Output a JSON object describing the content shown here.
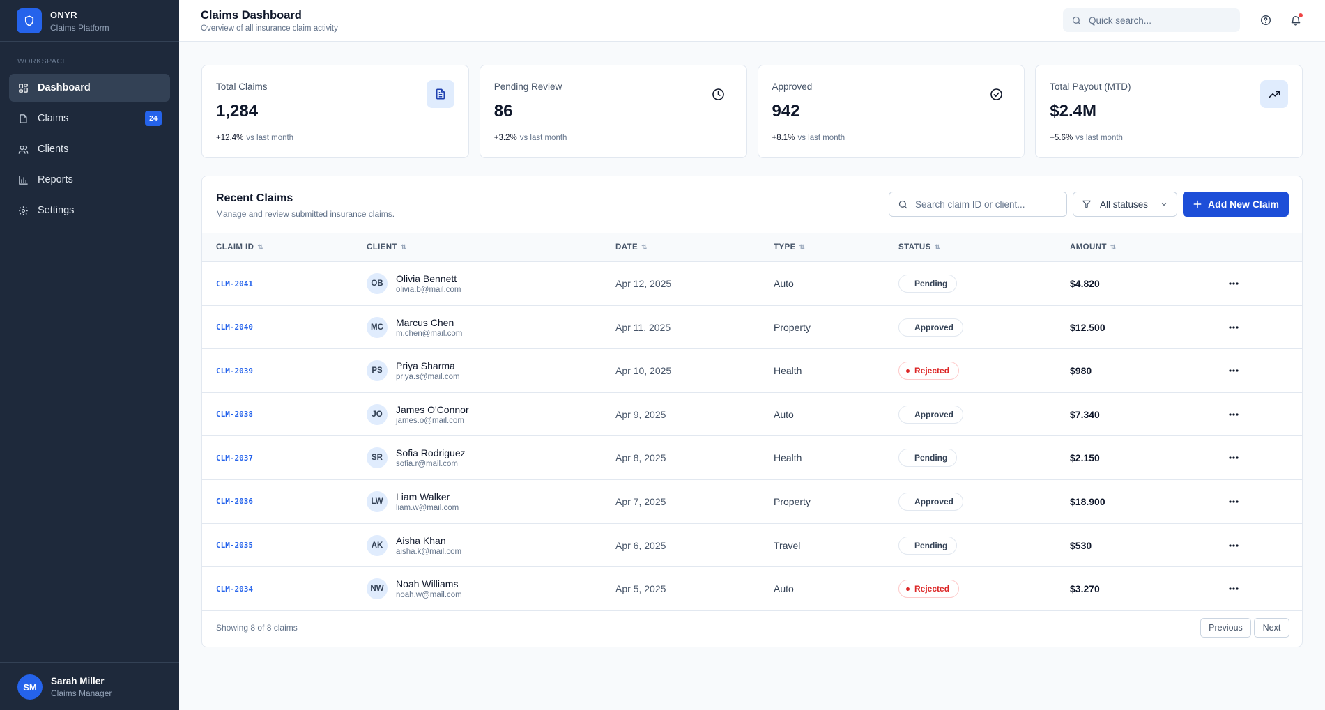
{
  "brand": {
    "name": "ONYR",
    "subtitle": "Claims Platform"
  },
  "sidebar": {
    "section_label": "WORKSPACE",
    "items": [
      {
        "label": "Dashboard",
        "icon": "grid-icon",
        "active": true
      },
      {
        "label": "Claims",
        "icon": "document-icon",
        "badge": "24"
      },
      {
        "label": "Clients",
        "icon": "users-icon"
      },
      {
        "label": "Reports",
        "icon": "bar-chart-icon"
      },
      {
        "label": "Settings",
        "icon": "gear-icon"
      }
    ]
  },
  "user": {
    "initials": "SM",
    "name": "Sarah Miller",
    "role": "Claims Manager"
  },
  "header": {
    "title": "Claims Dashboard",
    "subtitle": "Overview of all insurance claim activity",
    "search_placeholder": "Quick search..."
  },
  "stats": [
    {
      "label": "Total Claims",
      "value": "1,284",
      "change": "+12.4%",
      "change_note": "vs last month",
      "icon": "file-text-icon"
    },
    {
      "label": "Pending Review",
      "value": "86",
      "change": "+3.2%",
      "change_note": "vs last month",
      "icon": "clock-icon"
    },
    {
      "label": "Approved",
      "value": "942",
      "change": "+8.1%",
      "change_note": "vs last month",
      "icon": "check-circle-icon"
    },
    {
      "label": "Total Payout (MTD)",
      "value": "$2.4M",
      "change": "+5.6%",
      "change_note": "vs last month",
      "icon": "trending-up-icon"
    }
  ],
  "recent": {
    "title": "Recent Claims",
    "subtitle": "Manage and review submitted insurance claims.",
    "search_placeholder": "Search claim ID or client...",
    "filter_label": "All statuses",
    "add_label": "Add New Claim",
    "columns": [
      "CLAIM ID",
      "CLIENT",
      "DATE",
      "TYPE",
      "STATUS",
      "AMOUNT"
    ],
    "rows": [
      {
        "id": "CLM-2041",
        "initials": "OB",
        "name": "Olivia Bennett",
        "email": "olivia.b@mail.com",
        "date": "Apr 12, 2025",
        "type": "Auto",
        "status": "Pending",
        "amount": "$4.820"
      },
      {
        "id": "CLM-2040",
        "initials": "MC",
        "name": "Marcus Chen",
        "email": "m.chen@mail.com",
        "date": "Apr 11, 2025",
        "type": "Property",
        "status": "Approved",
        "amount": "$12.500"
      },
      {
        "id": "CLM-2039",
        "initials": "PS",
        "name": "Priya Sharma",
        "email": "priya.s@mail.com",
        "date": "Apr 10, 2025",
        "type": "Health",
        "status": "Rejected",
        "amount": "$980"
      },
      {
        "id": "CLM-2038",
        "initials": "JO",
        "name": "James O'Connor",
        "email": "james.o@mail.com",
        "date": "Apr 9, 2025",
        "type": "Auto",
        "status": "Approved",
        "amount": "$7.340"
      },
      {
        "id": "CLM-2037",
        "initials": "SR",
        "name": "Sofia Rodriguez",
        "email": "sofia.r@mail.com",
        "date": "Apr 8, 2025",
        "type": "Health",
        "status": "Pending",
        "amount": "$2.150"
      },
      {
        "id": "CLM-2036",
        "initials": "LW",
        "name": "Liam Walker",
        "email": "liam.w@mail.com",
        "date": "Apr 7, 2025",
        "type": "Property",
        "status": "Approved",
        "amount": "$18.900"
      },
      {
        "id": "CLM-2035",
        "initials": "AK",
        "name": "Aisha Khan",
        "email": "aisha.k@mail.com",
        "date": "Apr 6, 2025",
        "type": "Travel",
        "status": "Pending",
        "amount": "$530"
      },
      {
        "id": "CLM-2034",
        "initials": "NW",
        "name": "Noah Williams",
        "email": "noah.w@mail.com",
        "date": "Apr 5, 2025",
        "type": "Auto",
        "status": "Rejected",
        "amount": "$3.270"
      }
    ],
    "footer": {
      "showing": "Showing 8 of 8 claims",
      "prev_label": "Previous",
      "next_label": "Next"
    }
  },
  "colors": {
    "sidebar_bg": "#1e293b",
    "accent": "#2563eb",
    "primary_button": "#1d4ed8",
    "rejected": "#dc2626"
  }
}
